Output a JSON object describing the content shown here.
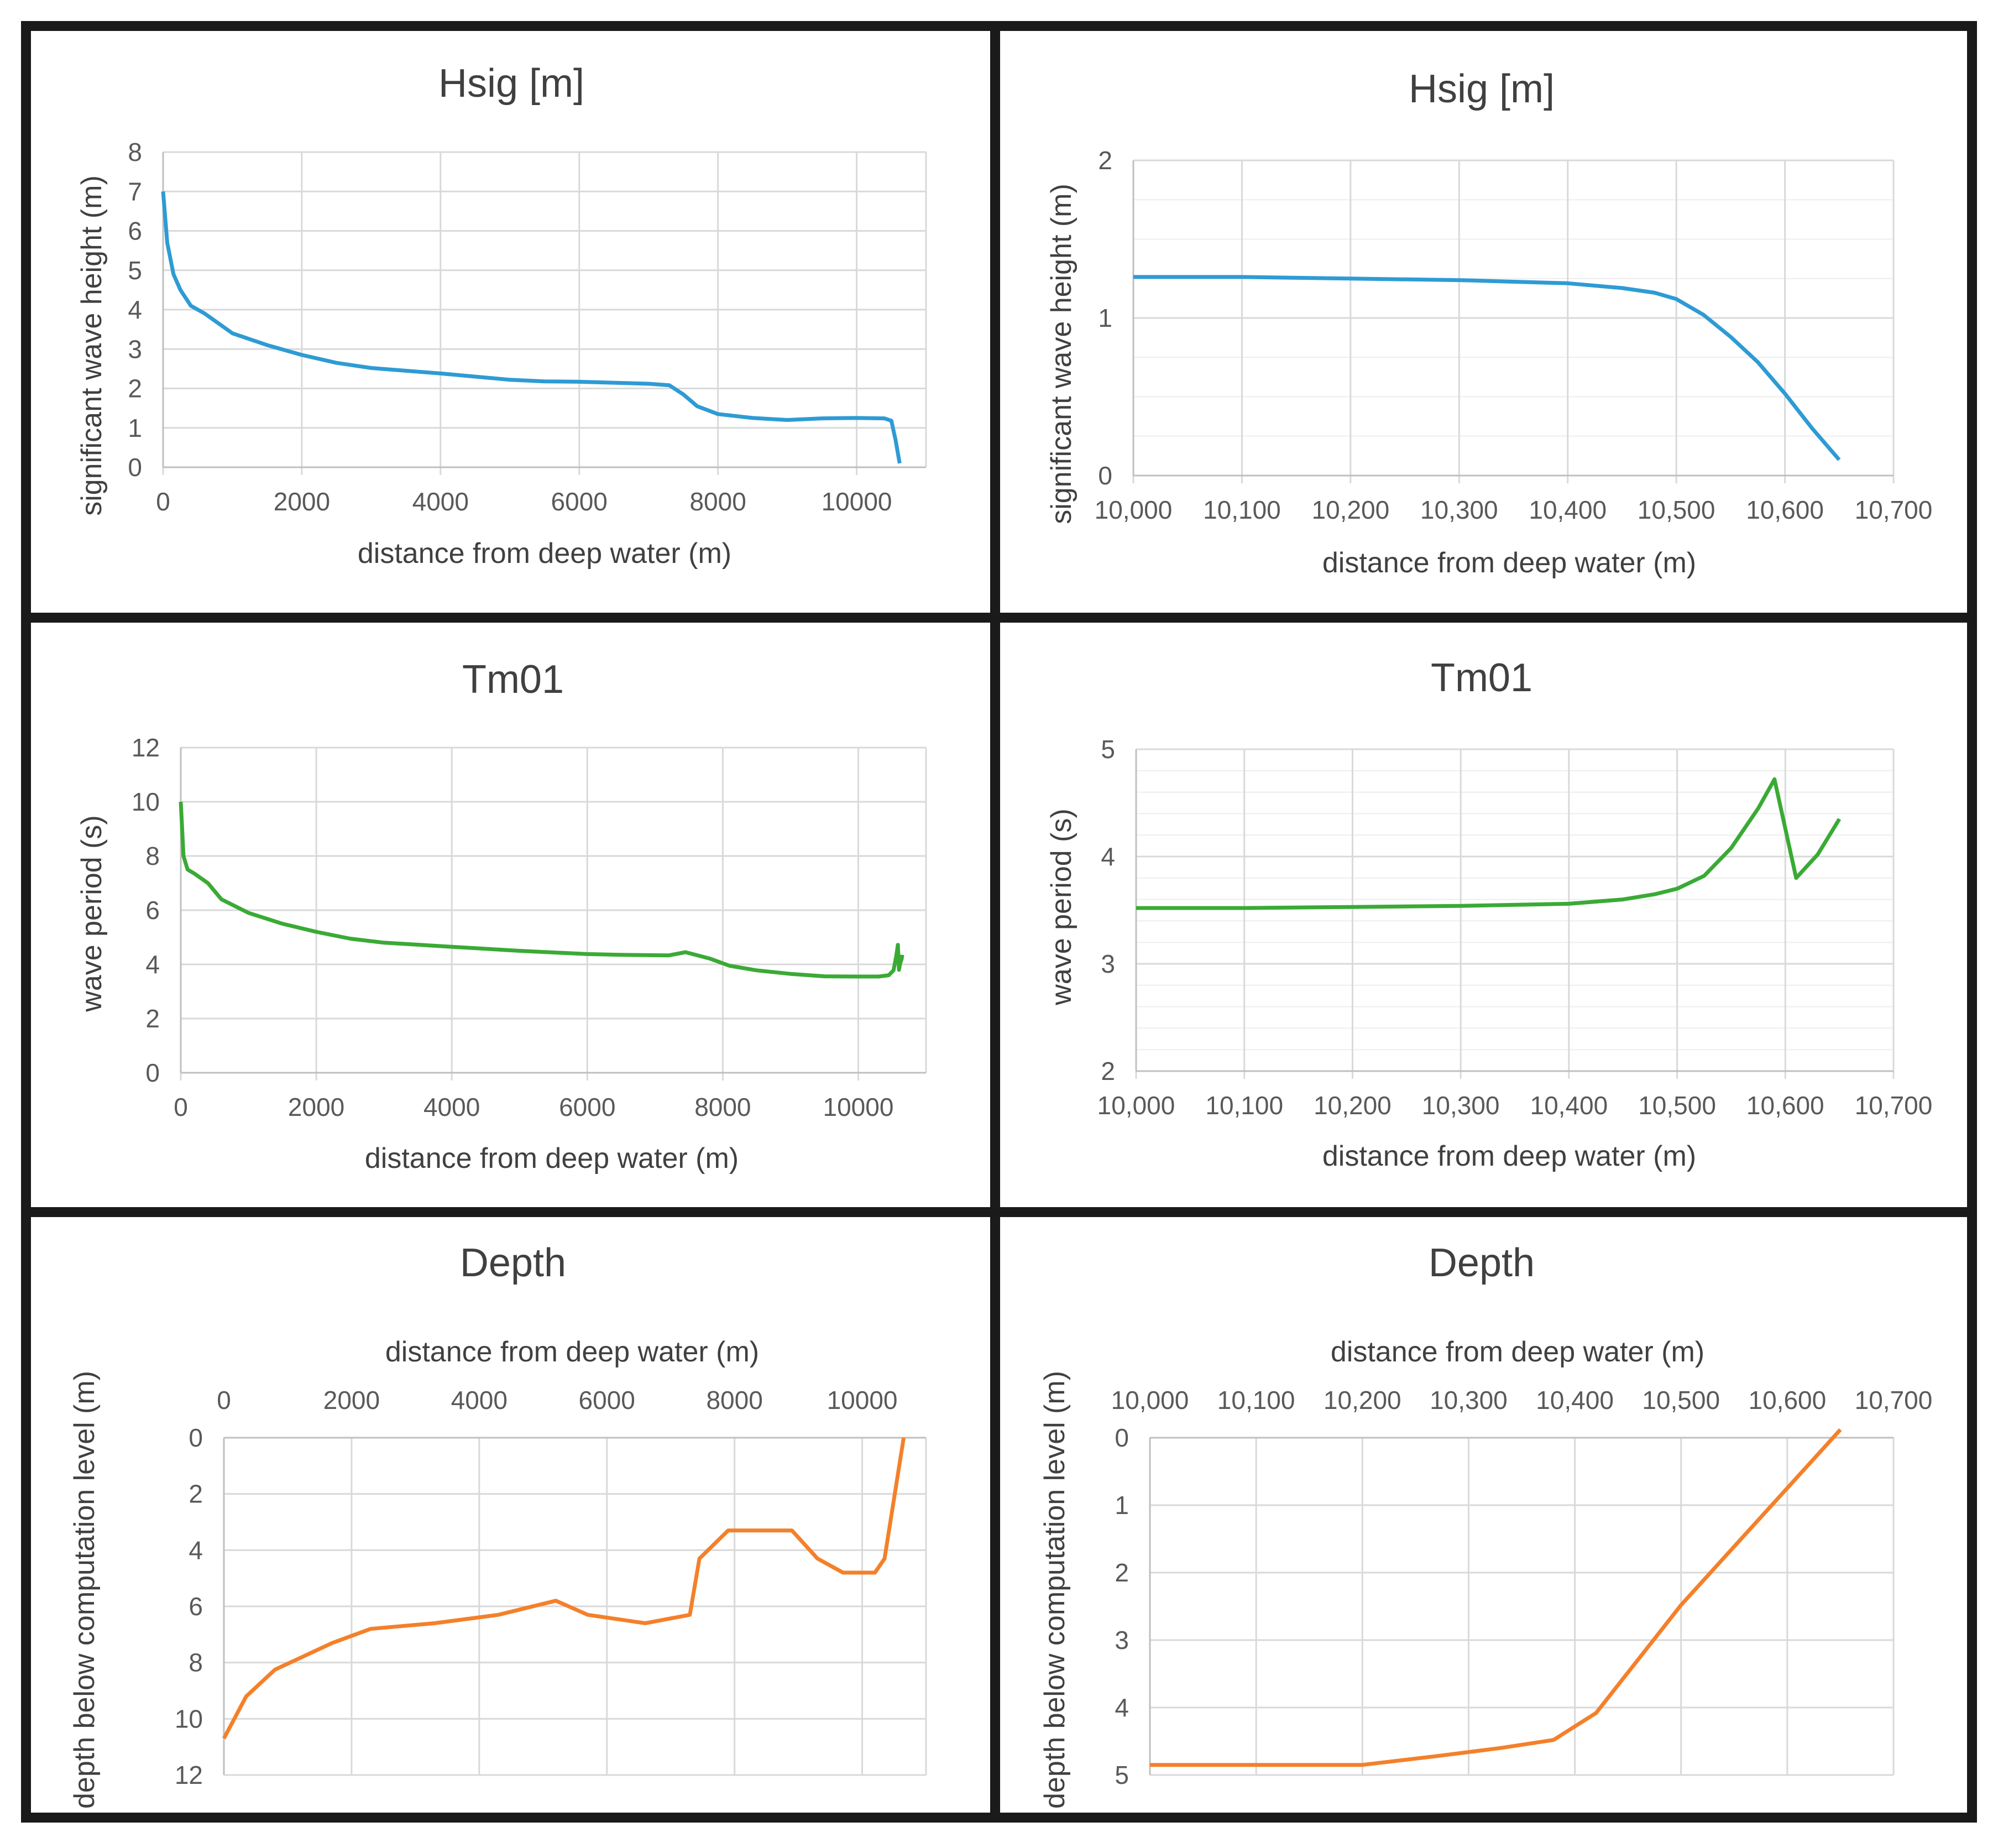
{
  "colors": {
    "hsig": "#2e9bd4",
    "tm01": "#3aaa35",
    "depth": "#f4802a",
    "grid": "#d9d9d9",
    "border": "#1a1a1a"
  },
  "chart_data": [
    {
      "id": "hsig-full",
      "type": "line",
      "title": "Hsig [m]",
      "xlabel": "distance from deep water (m)",
      "ylabel": "significant wave height (m)",
      "xlim": [
        0,
        11000
      ],
      "ylim": [
        0,
        8
      ],
      "xticks": [
        "0",
        "2000",
        "4000",
        "6000",
        "8000",
        "10000"
      ],
      "yticks": [
        "0",
        "1",
        "2",
        "3",
        "4",
        "5",
        "6",
        "7",
        "8"
      ],
      "series": [
        {
          "name": "Hsig",
          "x": [
            0,
            60,
            150,
            250,
            400,
            600,
            1000,
            1500,
            2000,
            2500,
            3000,
            4000,
            5000,
            5500,
            6000,
            7000,
            7300,
            7500,
            7700,
            8000,
            8500,
            9000,
            9500,
            10000,
            10400,
            10500,
            10560,
            10620
          ],
          "y": [
            7.0,
            5.7,
            4.9,
            4.5,
            4.1,
            3.9,
            3.4,
            3.1,
            2.85,
            2.65,
            2.52,
            2.38,
            2.22,
            2.18,
            2.17,
            2.12,
            2.08,
            1.85,
            1.55,
            1.35,
            1.25,
            1.2,
            1.24,
            1.25,
            1.24,
            1.18,
            0.7,
            0.1
          ]
        }
      ]
    },
    {
      "id": "hsig-zoom",
      "type": "line",
      "title": "Hsig [m]",
      "xlabel": "distance from deep water (m)",
      "ylabel": "significant wave height (m)",
      "xlim": [
        10000,
        10700
      ],
      "ylim": [
        0,
        2
      ],
      "xticks": [
        "10,000",
        "10,100",
        "10,200",
        "10,300",
        "10,400",
        "10,500",
        "10,600",
        "10,700"
      ],
      "yticks": [
        "0",
        "1",
        "2"
      ],
      "series": [
        {
          "name": "Hsig",
          "x": [
            10000,
            10100,
            10200,
            10300,
            10400,
            10450,
            10480,
            10500,
            10525,
            10550,
            10575,
            10600,
            10625,
            10650
          ],
          "y": [
            1.26,
            1.26,
            1.25,
            1.24,
            1.22,
            1.19,
            1.16,
            1.12,
            1.02,
            0.88,
            0.72,
            0.52,
            0.3,
            0.1
          ]
        }
      ]
    },
    {
      "id": "tm01-full",
      "type": "line",
      "title": "Tm01",
      "xlabel": "distance from deep water (m)",
      "ylabel": "wave period (s)",
      "xlim": [
        0,
        11000
      ],
      "ylim": [
        0,
        12
      ],
      "xticks": [
        "0",
        "2000",
        "4000",
        "6000",
        "8000",
        "10000"
      ],
      "yticks": [
        "0",
        "2",
        "4",
        "6",
        "8",
        "10",
        "12"
      ],
      "series": [
        {
          "name": "Tm01",
          "x": [
            0,
            40,
            100,
            200,
            400,
            600,
            1000,
            1500,
            2000,
            2500,
            3000,
            4000,
            5000,
            6000,
            6500,
            7200,
            7450,
            7800,
            8100,
            8500,
            9000,
            9500,
            10000,
            10300,
            10450,
            10520,
            10560,
            10585,
            10600,
            10620,
            10640,
            10650
          ],
          "y": [
            10.0,
            8.0,
            7.5,
            7.35,
            7.0,
            6.4,
            5.9,
            5.5,
            5.2,
            4.95,
            4.8,
            4.65,
            4.5,
            4.38,
            4.35,
            4.33,
            4.45,
            4.22,
            3.95,
            3.78,
            3.65,
            3.56,
            3.55,
            3.55,
            3.6,
            3.78,
            4.3,
            4.72,
            3.8,
            4.05,
            4.2,
            4.35
          ]
        }
      ]
    },
    {
      "id": "tm01-zoom",
      "type": "line",
      "title": "Tm01",
      "xlabel": "distance from deep water (m)",
      "ylabel": "wave period (s)",
      "xlim": [
        10000,
        10700
      ],
      "ylim": [
        2,
        5
      ],
      "xticks": [
        "10,000",
        "10,100",
        "10,200",
        "10,300",
        "10,400",
        "10,500",
        "10,600",
        "10,700"
      ],
      "yticks": [
        "2",
        "3",
        "4",
        "5"
      ],
      "series": [
        {
          "name": "Tm01",
          "x": [
            10000,
            10100,
            10200,
            10300,
            10400,
            10450,
            10480,
            10500,
            10525,
            10550,
            10575,
            10590,
            10610,
            10630,
            10650
          ],
          "y": [
            3.52,
            3.52,
            3.53,
            3.54,
            3.56,
            3.6,
            3.65,
            3.7,
            3.82,
            4.08,
            4.45,
            4.72,
            3.8,
            4.02,
            4.35
          ]
        }
      ]
    },
    {
      "id": "depth-full",
      "type": "line",
      "title": "Depth",
      "xlabel": "distance from deep water (m)",
      "ylabel": "depth below computation level (m)",
      "xlim": [
        0,
        11000
      ],
      "ylim": [
        0,
        12
      ],
      "y_inverted": true,
      "x_axis_position": "top",
      "xticks": [
        "0",
        "2000",
        "4000",
        "6000",
        "8000",
        "10000"
      ],
      "yticks": [
        "0",
        "2",
        "4",
        "6",
        "8",
        "10",
        "12"
      ],
      "series": [
        {
          "name": "Depth",
          "x": [
            0,
            350,
            800,
            1700,
            2300,
            3300,
            4300,
            5200,
            5700,
            6600,
            7300,
            7450,
            7900,
            8900,
            9300,
            9700,
            10200,
            10350,
            10650
          ],
          "y": [
            10.7,
            9.2,
            8.25,
            7.3,
            6.8,
            6.6,
            6.3,
            5.8,
            6.3,
            6.6,
            6.3,
            4.3,
            3.3,
            3.3,
            4.3,
            4.8,
            4.8,
            4.3,
            0
          ]
        }
      ]
    },
    {
      "id": "depth-zoom",
      "type": "line",
      "title": "Depth",
      "xlabel": "distance from deep water (m)",
      "ylabel": "depth below computation level (m)",
      "xlim": [
        10000,
        10700
      ],
      "ylim": [
        0,
        5
      ],
      "y_inverted": true,
      "x_axis_position": "top",
      "xticks": [
        "10,000",
        "10,100",
        "10,200",
        "10,300",
        "10,400",
        "10,500",
        "10,600",
        "10,700"
      ],
      "yticks": [
        "0",
        "1",
        "2",
        "3",
        "4",
        "5"
      ],
      "series": [
        {
          "name": "Depth",
          "x": [
            10000,
            10100,
            10200,
            10270,
            10330,
            10380,
            10420,
            10500,
            10650
          ],
          "y": [
            4.85,
            4.85,
            4.85,
            4.72,
            4.6,
            4.48,
            4.08,
            2.48,
            -0.12
          ]
        }
      ]
    }
  ]
}
